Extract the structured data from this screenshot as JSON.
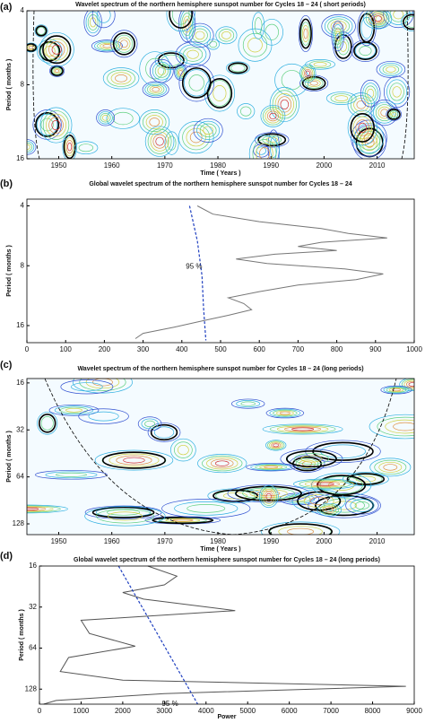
{
  "chart_data": [
    {
      "type": "wavelet",
      "panel_label": "(a)",
      "title": "Wavelet spectrum of  the northern hemisphere sunspot number for Cycles 18 – 24 ( short periods)",
      "xlabel": "Time ( Years )",
      "ylabel": "Period ( months )",
      "xlim": [
        1944,
        2017
      ],
      "xticks": [
        1950,
        1960,
        1970,
        1980,
        1990,
        2000,
        2010
      ],
      "ylim": [
        4,
        16
      ],
      "yticks": [
        4,
        8,
        16
      ],
      "ylog": true
    },
    {
      "type": "line",
      "panel_label": "(b)",
      "title": "Global wavelet spectrum of the northern hemisphere sunspot number for Cycles 18 – 24",
      "ylabel": "Period ( months )",
      "xlim": [
        0,
        1000
      ],
      "xticks": [
        0,
        100,
        200,
        300,
        400,
        500,
        600,
        700,
        800,
        900,
        1000
      ],
      "ylim": [
        3.7,
        19.5
      ],
      "yticks": [
        4,
        8,
        16
      ],
      "ylog": true,
      "annotation": "95 %",
      "series": [
        {
          "color": "#777777",
          "style": "solid",
          "x": [
            440,
            480,
            600,
            760,
            830,
            930,
            760,
            700,
            800,
            640,
            540,
            620,
            820,
            920,
            850,
            700,
            600,
            520,
            560,
            580,
            520,
            450,
            380,
            300,
            280
          ],
          "y": [
            4.0,
            4.4,
            4.8,
            5.2,
            5.5,
            5.8,
            6.1,
            6.4,
            6.7,
            7.0,
            7.4,
            7.8,
            8.3,
            8.8,
            9.4,
            10,
            10.8,
            11.6,
            12.4,
            13.3,
            14.2,
            15.2,
            16.3,
            17.5,
            18.6
          ]
        },
        {
          "color": "#2040c0",
          "style": "dashed",
          "x": [
            420,
            440,
            452,
            456,
            462
          ],
          "y": [
            4,
            6,
            9,
            13,
            19
          ]
        }
      ]
    },
    {
      "type": "wavelet",
      "panel_label": "(c)",
      "title": "Wavelet spectrum of the northern hemisphere sunspot number for Cycles 18 – 24  (long periods)",
      "xlabel": "Time ( Years )",
      "ylabel": "Period ( months )",
      "xlim": [
        1944,
        2017
      ],
      "xticks": [
        1950,
        1960,
        1970,
        1980,
        1990,
        2000,
        2010
      ],
      "ylim": [
        15,
        150
      ],
      "yticks": [
        16,
        32,
        64,
        128
      ],
      "ylog": true
    },
    {
      "type": "line",
      "panel_label": "(d)",
      "title": "Global wavelet spectrum of the northern hemisphere sunspot number for Cycles 18 – 24 (long periods)",
      "xlabel": "Power",
      "ylabel": "Period ( months )",
      "xlim": [
        0,
        9000
      ],
      "xticks": [
        0,
        1000,
        2000,
        3000,
        4000,
        5000,
        6000,
        7000,
        8000,
        9000
      ],
      "ylim": [
        16,
        165
      ],
      "yticks": [
        16,
        32,
        64,
        128
      ],
      "ylog": true,
      "annotation": "95 %",
      "series": [
        {
          "color": "#555555",
          "style": "solid",
          "x": [
            2600,
            3300,
            3000,
            2000,
            2500,
            4700,
            1000,
            1200,
            2300,
            700,
            500,
            2000,
            8800,
            3000,
            400,
            100
          ],
          "y": [
            16,
            19,
            22,
            25,
            28,
            34,
            40,
            50,
            62,
            75,
            95,
            110,
            122,
            138,
            155,
            165
          ]
        },
        {
          "color": "#2040c0",
          "style": "dashed",
          "x": [
            1900,
            3800
          ],
          "y": [
            16,
            165
          ]
        }
      ]
    }
  ]
}
